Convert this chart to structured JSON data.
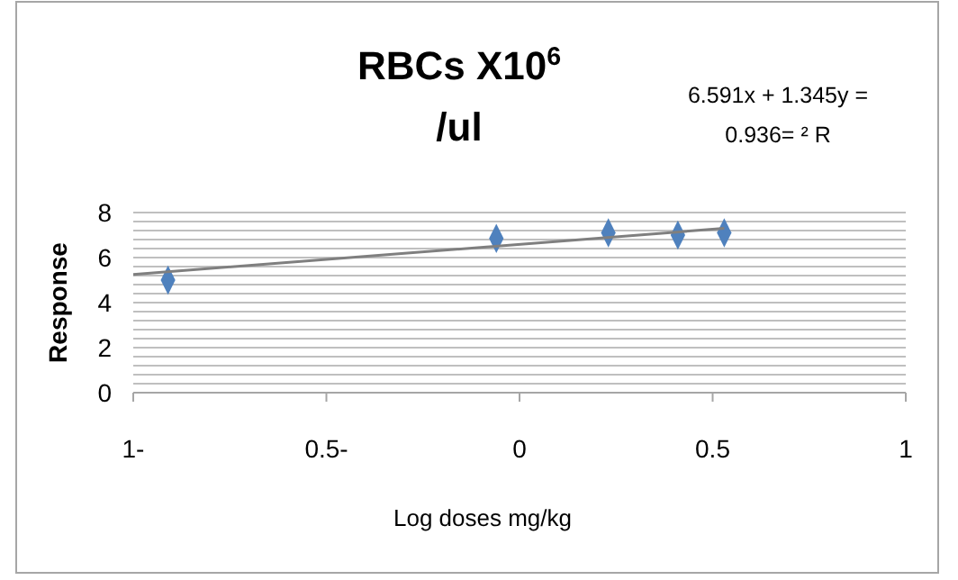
{
  "chart_data": {
    "type": "scatter",
    "title": "RBCs X10$^{6}$ /ul",
    "xlabel": "Log doses mg/kg",
    "ylabel": "Response",
    "annotations": [
      "6.591x + 1.345y =",
      "0.936= ² R"
    ],
    "x": [
      -0.91,
      -0.06,
      0.23,
      0.41,
      0.53
    ],
    "series": [
      {
        "color": "#4f81bd",
        "marker": "diamond",
        "values": [
          5.0,
          6.85,
          7.1,
          7.0,
          7.1
        ]
      },
      {
        "type": "line",
        "color": "#7f7f7f",
        "marker": "none",
        "x": [
          -1,
          0.53
        ],
        "values": [
          5.25,
          7.3
        ]
      }
    ],
    "xlim": [
      -1,
      1
    ],
    "xticks": [
      {
        "value": -1,
        "label": "1-"
      },
      {
        "value": -0.5,
        "label": "0.5-"
      },
      0,
      0.5,
      1
    ],
    "ylim": [
      0,
      8
    ],
    "yticks": [
      0,
      {
        "value": 0.4,
        "label": null
      },
      {
        "value": 0.8,
        "label": null
      },
      {
        "value": 1.2,
        "label": null
      },
      {
        "value": 1.6,
        "label": null
      },
      2,
      {
        "value": 2.4,
        "label": null
      },
      {
        "value": 2.8,
        "label": null
      },
      {
        "value": 3.2,
        "label": null
      },
      {
        "value": 3.6,
        "label": null
      },
      4,
      {
        "value": 4.4,
        "label": null
      },
      {
        "value": 4.8,
        "label": null
      },
      {
        "value": 5.2,
        "label": null
      },
      {
        "value": 5.6,
        "label": null
      },
      6,
      {
        "value": 6.4,
        "label": null
      },
      {
        "value": 6.8,
        "label": null
      },
      {
        "value": 7.2,
        "label": null
      },
      {
        "value": 7.6,
        "label": null
      },
      8
    ],
    "grid": "y"
  }
}
